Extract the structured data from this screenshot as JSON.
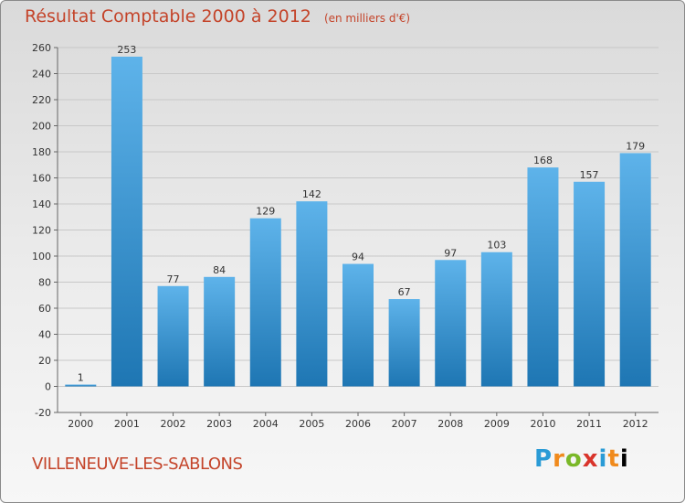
{
  "header": {
    "title": "Résultat Comptable 2000 à 2012",
    "subtitle": "(en milliers d'€)"
  },
  "footer": {
    "city": "VILLENEUVE-LES-SABLONS",
    "brand": [
      "P",
      "r",
      "o",
      "x",
      "i",
      "t",
      "i"
    ]
  },
  "colors": {
    "bar_top": "#5eb3ea",
    "bar_bottom": "#1e76b3",
    "title": "#c4442a"
  },
  "chart_data": {
    "type": "bar",
    "categories": [
      "2000",
      "2001",
      "2002",
      "2003",
      "2004",
      "2005",
      "2006",
      "2007",
      "2008",
      "2009",
      "2010",
      "2011",
      "2012"
    ],
    "values": [
      1,
      253,
      77,
      84,
      129,
      142,
      94,
      67,
      97,
      103,
      168,
      157,
      179
    ],
    "ylim": [
      -20,
      260
    ],
    "yticks": [
      -20,
      0,
      20,
      40,
      60,
      80,
      100,
      120,
      140,
      160,
      180,
      200,
      220,
      240,
      260
    ],
    "grid": true
  }
}
